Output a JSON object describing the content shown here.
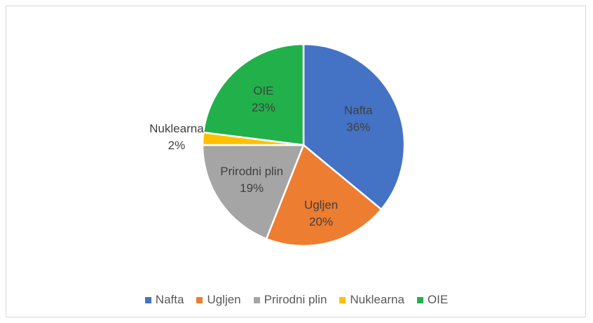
{
  "chart_data": {
    "type": "pie",
    "categories": [
      "Nafta",
      "Ugljen",
      "Prirodni plin",
      "Nuklearna",
      "OIE"
    ],
    "values": [
      36,
      20,
      19,
      2,
      23
    ],
    "value_labels": [
      "36%",
      "20%",
      "19%",
      "2%",
      "23%"
    ],
    "colors": [
      "#4472c4",
      "#ed7d31",
      "#a5a5a5",
      "#ffc000",
      "#22b04b"
    ],
    "legend": "bottom"
  }
}
